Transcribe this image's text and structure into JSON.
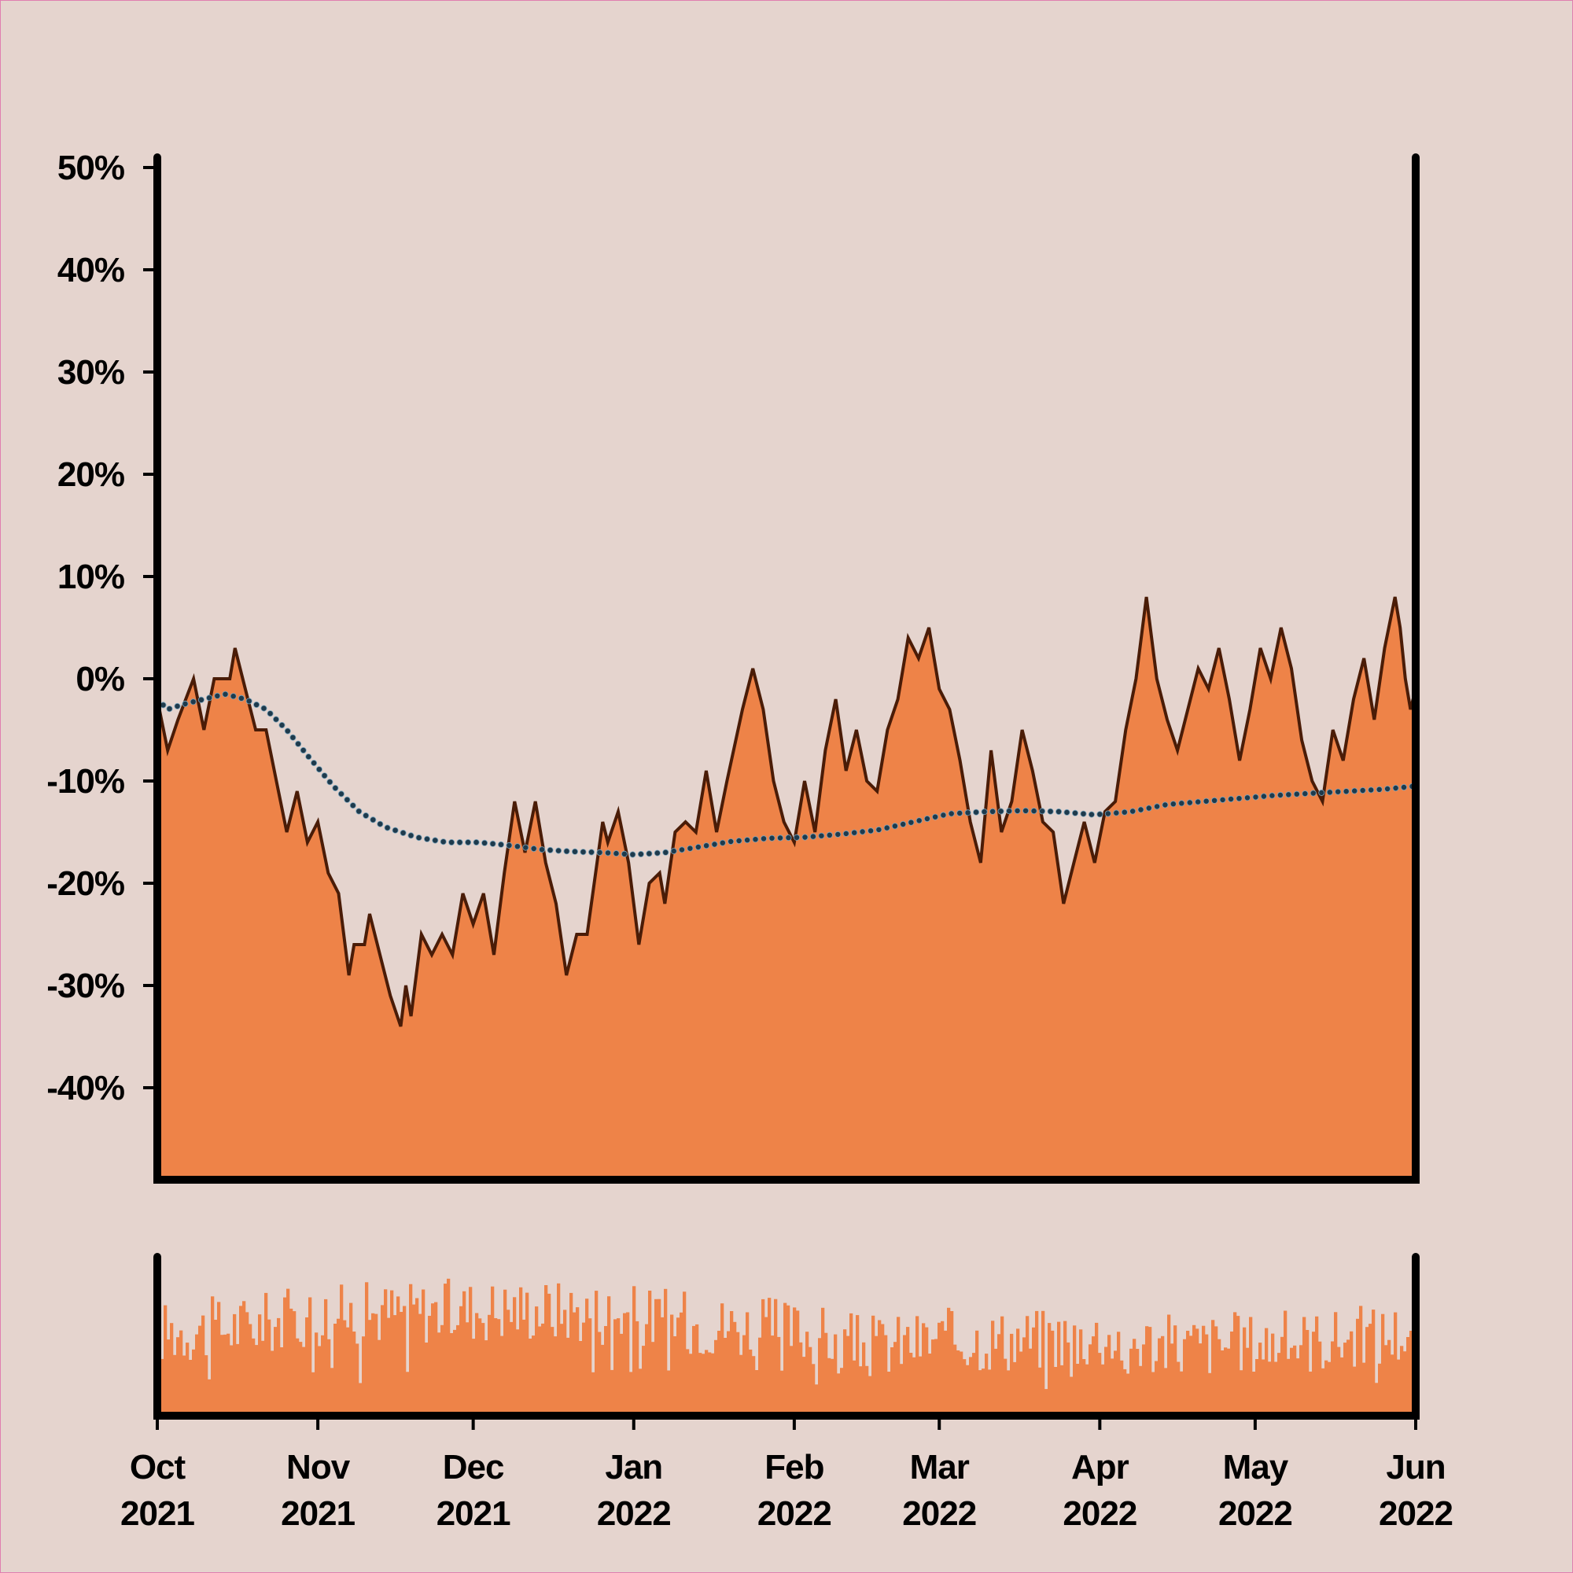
{
  "colors": {
    "background": "#e5d4ce",
    "frame": "#e07fb0",
    "area_fill": "#ee8348",
    "price_line": "#4a1c07",
    "trend_dots": "#1e3a4c",
    "axis": "#000000"
  },
  "chart_data": [
    {
      "type": "area",
      "title": "",
      "xlabel": "",
      "ylabel": "",
      "grid": false,
      "legend": "none",
      "ylim": [
        -49,
        51
      ],
      "yticks": [
        50,
        40,
        30,
        20,
        10,
        0,
        -10,
        -20,
        -30,
        -40
      ],
      "ytick_labels": [
        "50%",
        "40%",
        "30%",
        "20%",
        "10%",
        "0%",
        "-10%",
        "-20%",
        "-30%",
        "-40%"
      ],
      "x_start": "2021-10-01",
      "x_end": "2022-06-01",
      "series": [
        {
          "style": "area-line",
          "points": [
            [
              "2021-10-01",
              -2
            ],
            [
              "2021-10-03",
              -7
            ],
            [
              "2021-10-05",
              -4
            ],
            [
              "2021-10-08",
              0
            ],
            [
              "2021-10-10",
              -5
            ],
            [
              "2021-10-12",
              0
            ],
            [
              "2021-10-15",
              0
            ],
            [
              "2021-10-16",
              3
            ],
            [
              "2021-10-18",
              -1
            ],
            [
              "2021-10-20",
              -5
            ],
            [
              "2021-10-22",
              -5
            ],
            [
              "2021-10-24",
              -10
            ],
            [
              "2021-10-26",
              -15
            ],
            [
              "2021-10-28",
              -11
            ],
            [
              "2021-10-30",
              -16
            ],
            [
              "2021-11-01",
              -14
            ],
            [
              "2021-11-03",
              -19
            ],
            [
              "2021-11-05",
              -21
            ],
            [
              "2021-11-07",
              -29
            ],
            [
              "2021-11-08",
              -26
            ],
            [
              "2021-11-10",
              -26
            ],
            [
              "2021-11-11",
              -23
            ],
            [
              "2021-11-13",
              -27
            ],
            [
              "2021-11-15",
              -31
            ],
            [
              "2021-11-17",
              -34
            ],
            [
              "2021-11-18",
              -30
            ],
            [
              "2021-11-19",
              -33
            ],
            [
              "2021-11-21",
              -25
            ],
            [
              "2021-11-23",
              -27
            ],
            [
              "2021-11-25",
              -25
            ],
            [
              "2021-11-27",
              -27
            ],
            [
              "2021-11-29",
              -21
            ],
            [
              "2021-12-01",
              -24
            ],
            [
              "2021-12-03",
              -21
            ],
            [
              "2021-12-05",
              -27
            ],
            [
              "2021-12-07",
              -19
            ],
            [
              "2021-12-09",
              -12
            ],
            [
              "2021-12-11",
              -17
            ],
            [
              "2021-12-13",
              -12
            ],
            [
              "2021-12-15",
              -18
            ],
            [
              "2021-12-17",
              -22
            ],
            [
              "2021-12-19",
              -29
            ],
            [
              "2021-12-21",
              -25
            ],
            [
              "2021-12-23",
              -25
            ],
            [
              "2021-12-26",
              -14
            ],
            [
              "2021-12-27",
              -16
            ],
            [
              "2021-12-29",
              -13
            ],
            [
              "2021-12-31",
              -18
            ],
            [
              "2022-01-02",
              -26
            ],
            [
              "2022-01-04",
              -20
            ],
            [
              "2022-01-06",
              -19
            ],
            [
              "2022-01-07",
              -22
            ],
            [
              "2022-01-09",
              -15
            ],
            [
              "2022-01-11",
              -14
            ],
            [
              "2022-01-13",
              -15
            ],
            [
              "2022-01-15",
              -9
            ],
            [
              "2022-01-17",
              -15
            ],
            [
              "2022-01-19",
              -10
            ],
            [
              "2022-01-22",
              -3
            ],
            [
              "2022-01-24",
              1
            ],
            [
              "2022-01-26",
              -3
            ],
            [
              "2022-01-28",
              -10
            ],
            [
              "2022-01-30",
              -14
            ],
            [
              "2022-02-01",
              -16
            ],
            [
              "2022-02-03",
              -10
            ],
            [
              "2022-02-05",
              -15
            ],
            [
              "2022-02-07",
              -7
            ],
            [
              "2022-02-09",
              -2
            ],
            [
              "2022-02-11",
              -9
            ],
            [
              "2022-02-13",
              -5
            ],
            [
              "2022-02-15",
              -10
            ],
            [
              "2022-02-17",
              -11
            ],
            [
              "2022-02-19",
              -5
            ],
            [
              "2022-02-21",
              -2
            ],
            [
              "2022-02-23",
              4
            ],
            [
              "2022-02-25",
              2
            ],
            [
              "2022-02-27",
              5
            ],
            [
              "2022-03-01",
              -1
            ],
            [
              "2022-03-03",
              -3
            ],
            [
              "2022-03-05",
              -8
            ],
            [
              "2022-03-07",
              -14
            ],
            [
              "2022-03-09",
              -18
            ],
            [
              "2022-03-11",
              -7
            ],
            [
              "2022-03-13",
              -15
            ],
            [
              "2022-03-15",
              -12
            ],
            [
              "2022-03-17",
              -5
            ],
            [
              "2022-03-19",
              -9
            ],
            [
              "2022-03-21",
              -14
            ],
            [
              "2022-03-23",
              -15
            ],
            [
              "2022-03-25",
              -22
            ],
            [
              "2022-03-27",
              -18
            ],
            [
              "2022-03-29",
              -14
            ],
            [
              "2022-03-31",
              -18
            ],
            [
              "2022-04-02",
              -13
            ],
            [
              "2022-04-04",
              -12
            ],
            [
              "2022-04-06",
              -5
            ],
            [
              "2022-04-08",
              0
            ],
            [
              "2022-04-10",
              8
            ],
            [
              "2022-04-12",
              0
            ],
            [
              "2022-04-14",
              -4
            ],
            [
              "2022-04-16",
              -7
            ],
            [
              "2022-04-18",
              -3
            ],
            [
              "2022-04-20",
              1
            ],
            [
              "2022-04-22",
              -1
            ],
            [
              "2022-04-24",
              3
            ],
            [
              "2022-04-26",
              -2
            ],
            [
              "2022-04-28",
              -8
            ],
            [
              "2022-04-30",
              -3
            ],
            [
              "2022-05-02",
              3
            ],
            [
              "2022-05-04",
              0
            ],
            [
              "2022-05-06",
              5
            ],
            [
              "2022-05-08",
              1
            ],
            [
              "2022-05-10",
              -6
            ],
            [
              "2022-05-12",
              -10
            ],
            [
              "2022-05-14",
              -12
            ],
            [
              "2022-05-16",
              -5
            ],
            [
              "2022-05-18",
              -8
            ],
            [
              "2022-05-20",
              -2
            ],
            [
              "2022-05-22",
              2
            ],
            [
              "2022-05-24",
              -4
            ],
            [
              "2022-05-26",
              3
            ],
            [
              "2022-05-28",
              8
            ],
            [
              "2022-05-29",
              5
            ],
            [
              "2022-05-30",
              0
            ],
            [
              "2022-05-31",
              -3
            ],
            [
              "2022-06-01",
              -1
            ]
          ]
        },
        {
          "style": "dotted-trend",
          "points": [
            [
              "2021-10-01",
              -2
            ],
            [
              "2021-10-03",
              -3
            ],
            [
              "2021-10-06",
              -2.5
            ],
            [
              "2021-10-10",
              -2
            ],
            [
              "2021-10-14",
              -1.5
            ],
            [
              "2021-10-18",
              -2
            ],
            [
              "2021-10-22",
              -3
            ],
            [
              "2021-10-26",
              -5
            ],
            [
              "2021-10-30",
              -7.5
            ],
            [
              "2021-11-04",
              -10.5
            ],
            [
              "2021-11-09",
              -13
            ],
            [
              "2021-11-14",
              -14.5
            ],
            [
              "2021-11-20",
              -15.5
            ],
            [
              "2021-11-26",
              -16
            ],
            [
              "2021-12-02",
              -16
            ],
            [
              "2021-12-08",
              -16.3
            ],
            [
              "2021-12-14",
              -16.7
            ],
            [
              "2021-12-20",
              -16.9
            ],
            [
              "2021-12-26",
              -17
            ],
            [
              "2022-01-01",
              -17.2
            ],
            [
              "2022-01-07",
              -17
            ],
            [
              "2022-01-13",
              -16.5
            ],
            [
              "2022-01-20",
              -15.9
            ],
            [
              "2022-01-27",
              -15.6
            ],
            [
              "2022-02-03",
              -15.5
            ],
            [
              "2022-02-10",
              -15.2
            ],
            [
              "2022-02-17",
              -14.8
            ],
            [
              "2022-02-24",
              -14
            ],
            [
              "2022-03-03",
              -13.2
            ],
            [
              "2022-03-10",
              -13
            ],
            [
              "2022-03-17",
              -12.9
            ],
            [
              "2022-03-24",
              -13
            ],
            [
              "2022-03-31",
              -13.3
            ],
            [
              "2022-04-07",
              -13
            ],
            [
              "2022-04-14",
              -12.3
            ],
            [
              "2022-04-21",
              -12
            ],
            [
              "2022-04-28",
              -11.7
            ],
            [
              "2022-05-05",
              -11.4
            ],
            [
              "2022-05-12",
              -11.2
            ],
            [
              "2022-05-19",
              -11
            ],
            [
              "2022-05-26",
              -10.8
            ],
            [
              "2022-06-01",
              -10.5
            ]
          ]
        }
      ]
    },
    {
      "type": "bar",
      "title": "",
      "xlabel": "",
      "ylabel": "",
      "grid": false,
      "legend": "none",
      "ylim": [
        0,
        1
      ],
      "x_start": "2021-10-01",
      "x_end": "2022-06-01",
      "volume_profile": [
        [
          "2021-10-01",
          0.55
        ],
        [
          "2021-10-15",
          0.58
        ],
        [
          "2021-11-01",
          0.66
        ],
        [
          "2021-11-15",
          0.68
        ],
        [
          "2021-12-01",
          0.7
        ],
        [
          "2021-12-15",
          0.7
        ],
        [
          "2022-01-01",
          0.66
        ],
        [
          "2022-01-15",
          0.6
        ],
        [
          "2022-02-01",
          0.56
        ],
        [
          "2022-02-15",
          0.45
        ],
        [
          "2022-03-01",
          0.5
        ],
        [
          "2022-03-15",
          0.5
        ],
        [
          "2022-04-01",
          0.52
        ],
        [
          "2022-04-15",
          0.46
        ],
        [
          "2022-05-01",
          0.48
        ],
        [
          "2022-05-15",
          0.5
        ],
        [
          "2022-06-01",
          0.55
        ]
      ],
      "xtick_months": [
        "Oct",
        "Nov",
        "Dec",
        "Jan",
        "Feb",
        "Mar",
        "Apr",
        "May",
        "Jun"
      ],
      "xtick_years": [
        "2021",
        "2021",
        "2021",
        "2022",
        "2022",
        "2022",
        "2022",
        "2022",
        "2022"
      ],
      "xtick_dates": [
        "2021-10-01",
        "2021-11-01",
        "2021-12-01",
        "2022-01-01",
        "2022-02-01",
        "2022-03-01",
        "2022-04-01",
        "2022-05-01",
        "2022-06-01"
      ]
    }
  ]
}
